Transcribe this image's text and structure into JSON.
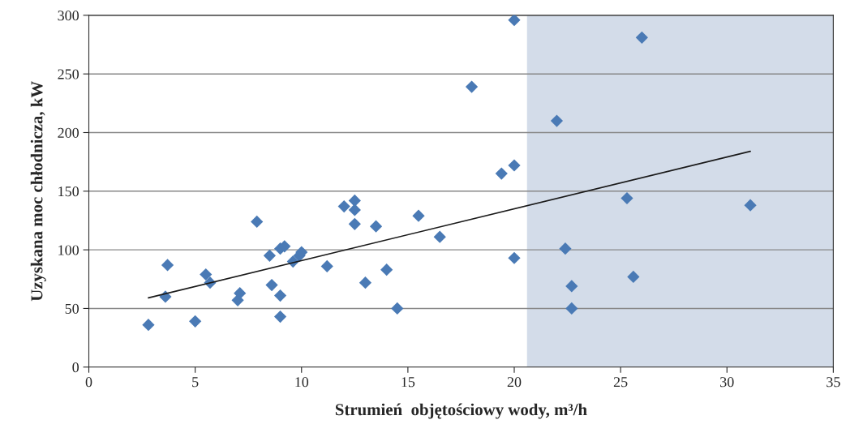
{
  "chart_data": {
    "type": "scatter",
    "xlabel": "Strumień  objętościowy wody, m³/h",
    "ylabel": "Uzyskana moc chłodnicza, kW",
    "xlim": [
      0,
      35
    ],
    "xticks": [
      0,
      5,
      10,
      15,
      20,
      25,
      30,
      35
    ],
    "ylim": [
      0,
      300
    ],
    "yticks": [
      0,
      50,
      100,
      150,
      200,
      250,
      300
    ],
    "grid": "y",
    "marker": "diamond",
    "legend": false,
    "bands": [
      {
        "axis": "x",
        "from": 20.6,
        "to": 35,
        "color": "#d3dce9"
      }
    ],
    "series": [
      {
        "color": "#4a7ab5",
        "x": [
          2.8,
          3.6,
          3.7,
          5.0,
          5.5,
          5.7,
          7.0,
          7.1,
          7.9,
          8.5,
          8.6,
          9.0,
          9.0,
          9.0,
          9.2,
          9.6,
          9.9,
          10.0,
          11.2,
          12.0,
          12.5,
          12.5,
          12.5,
          13.0,
          13.5,
          14.0,
          14.5,
          15.5,
          16.5,
          18.0,
          19.4,
          20.0,
          20.0,
          20.0,
          22.0,
          22.4,
          22.7,
          22.7,
          25.3,
          25.6,
          26.0,
          31.1
        ],
        "values": [
          36,
          60,
          87,
          39,
          79,
          72,
          57,
          63,
          124,
          95,
          70,
          101,
          61,
          43,
          103,
          90,
          95,
          98,
          86,
          137,
          142,
          134,
          122,
          72,
          120,
          83,
          50,
          129,
          111,
          239,
          165,
          172,
          93,
          296,
          210,
          101,
          69,
          50,
          144,
          77,
          281,
          138
        ]
      },
      {
        "type": "line",
        "color": "#1a1a1a",
        "line_style": "solid",
        "marker": "none",
        "x": [
          2.8,
          31.1
        ],
        "values": [
          59,
          184
        ]
      }
    ]
  }
}
